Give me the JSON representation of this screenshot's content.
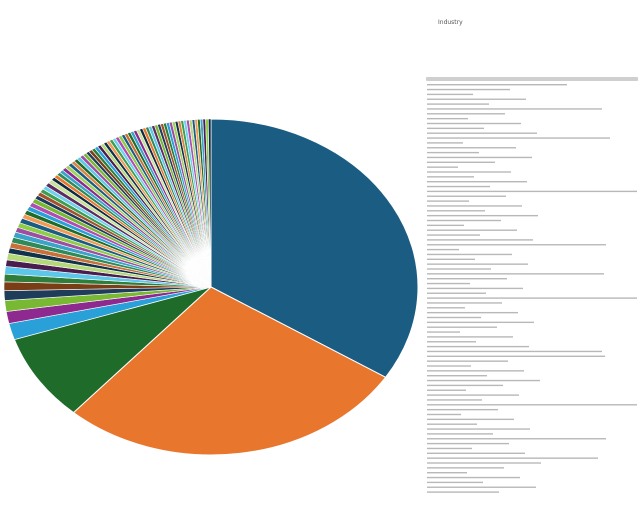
{
  "chart_data": {
    "type": "pie",
    "title": "",
    "legend": {
      "title": "Industry",
      "placement": "right",
      "entries_legible": false,
      "entry_count_estimate": 85
    },
    "start_angle_deg": 90,
    "direction": "clockwise",
    "slices": [
      {
        "value": 32.5,
        "color": "#1b5d82"
      },
      {
        "value": 26.3,
        "color": "#e8762d"
      },
      {
        "value": 8.0,
        "color": "#1f6b2a"
      },
      {
        "value": 1.5,
        "color": "#29a0d8"
      },
      {
        "value": 1.1,
        "color": "#8e2a8f"
      },
      {
        "value": 1.0,
        "color": "#78b833"
      },
      {
        "value": 0.9,
        "color": "#1f3c5a"
      },
      {
        "value": 0.8,
        "color": "#7a3e16"
      },
      {
        "value": 0.7,
        "color": "#2f7d3a"
      },
      {
        "value": 0.7,
        "color": "#5cc7e8"
      },
      {
        "value": 0.6,
        "color": "#4b1d4f"
      },
      {
        "value": 0.6,
        "color": "#b5d97a"
      },
      {
        "value": 0.5,
        "color": "#12324a"
      },
      {
        "value": 0.5,
        "color": "#c9703a"
      },
      {
        "value": 0.5,
        "color": "#2e8b57"
      },
      {
        "value": 0.5,
        "color": "#3aa3c9"
      },
      {
        "value": 0.45,
        "color": "#9c4fa0"
      },
      {
        "value": 0.45,
        "color": "#8fcc4a"
      },
      {
        "value": 0.45,
        "color": "#1b5d82"
      },
      {
        "value": 0.4,
        "color": "#f29a55"
      },
      {
        "value": 0.4,
        "color": "#1f6b2a"
      },
      {
        "value": 0.4,
        "color": "#29a0d8"
      },
      {
        "value": 0.4,
        "color": "#b04cb2"
      },
      {
        "value": 0.4,
        "color": "#78b833"
      },
      {
        "value": 0.35,
        "color": "#1f3c5a"
      },
      {
        "value": 0.35,
        "color": "#a0522d"
      },
      {
        "value": 0.35,
        "color": "#3e9e4f"
      },
      {
        "value": 0.35,
        "color": "#6fd0ee"
      },
      {
        "value": 0.35,
        "color": "#5d2a62"
      },
      {
        "value": 0.35,
        "color": "#c8e39a"
      },
      {
        "value": 0.3,
        "color": "#0f2a40"
      },
      {
        "value": 0.3,
        "color": "#e8762d"
      },
      {
        "value": 0.3,
        "color": "#2e8b57"
      },
      {
        "value": 0.3,
        "color": "#3aa3c9"
      },
      {
        "value": 0.3,
        "color": "#8e2a8f"
      },
      {
        "value": 0.3,
        "color": "#9ed35c"
      },
      {
        "value": 0.3,
        "color": "#1b5d82"
      },
      {
        "value": 0.28,
        "color": "#d98544"
      },
      {
        "value": 0.28,
        "color": "#1f6b2a"
      },
      {
        "value": 0.28,
        "color": "#5cc7e8"
      },
      {
        "value": 0.28,
        "color": "#9c4fa0"
      },
      {
        "value": 0.28,
        "color": "#78b833"
      },
      {
        "value": 0.26,
        "color": "#1f3c5a"
      },
      {
        "value": 0.26,
        "color": "#7a3e16"
      },
      {
        "value": 0.26,
        "color": "#2f7d3a"
      },
      {
        "value": 0.26,
        "color": "#29a0d8"
      },
      {
        "value": 0.26,
        "color": "#4b1d4f"
      },
      {
        "value": 0.26,
        "color": "#b5d97a"
      },
      {
        "value": 0.25,
        "color": "#12324a"
      },
      {
        "value": 0.25,
        "color": "#f29a55"
      },
      {
        "value": 0.25,
        "color": "#3e9e4f"
      },
      {
        "value": 0.25,
        "color": "#6fd0ee"
      },
      {
        "value": 0.25,
        "color": "#b04cb2"
      },
      {
        "value": 0.25,
        "color": "#8fcc4a"
      },
      {
        "value": 0.24,
        "color": "#1b5d82"
      },
      {
        "value": 0.24,
        "color": "#c9703a"
      },
      {
        "value": 0.24,
        "color": "#1f6b2a"
      },
      {
        "value": 0.24,
        "color": "#3aa3c9"
      },
      {
        "value": 0.24,
        "color": "#8e2a8f"
      },
      {
        "value": 0.24,
        "color": "#c8e39a"
      },
      {
        "value": 0.23,
        "color": "#0f2a40"
      },
      {
        "value": 0.23,
        "color": "#e8762d"
      },
      {
        "value": 0.23,
        "color": "#2e8b57"
      },
      {
        "value": 0.23,
        "color": "#5cc7e8"
      },
      {
        "value": 0.23,
        "color": "#5d2a62"
      },
      {
        "value": 0.23,
        "color": "#78b833"
      },
      {
        "value": 0.22,
        "color": "#1f3c5a"
      },
      {
        "value": 0.22,
        "color": "#a0522d"
      },
      {
        "value": 0.22,
        "color": "#2f7d3a"
      },
      {
        "value": 0.22,
        "color": "#29a0d8"
      },
      {
        "value": 0.22,
        "color": "#9c4fa0"
      },
      {
        "value": 0.22,
        "color": "#9ed35c"
      },
      {
        "value": 0.21,
        "color": "#12324a"
      },
      {
        "value": 0.21,
        "color": "#d98544"
      },
      {
        "value": 0.21,
        "color": "#3e9e4f"
      },
      {
        "value": 0.21,
        "color": "#6fd0ee"
      },
      {
        "value": 0.21,
        "color": "#b04cb2"
      },
      {
        "value": 0.21,
        "color": "#b5d97a"
      },
      {
        "value": 0.2,
        "color": "#1b5d82"
      },
      {
        "value": 0.2,
        "color": "#f29a55"
      },
      {
        "value": 0.2,
        "color": "#1f6b2a"
      },
      {
        "value": 0.2,
        "color": "#3aa3c9"
      },
      {
        "value": 0.2,
        "color": "#4b1d4f"
      },
      {
        "value": 0.2,
        "color": "#8fcc4a"
      },
      {
        "value": 0.2,
        "color": "#0f2a40"
      }
    ]
  }
}
